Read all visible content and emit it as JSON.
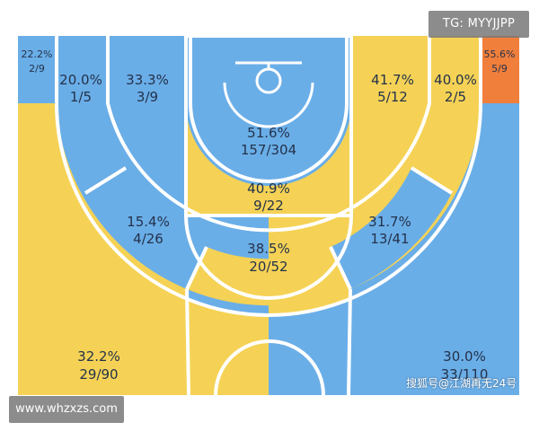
{
  "colors": {
    "blue": "#6aaee8",
    "yellow": "#f5d255",
    "orange": "#f07f3c",
    "line": "#ffffff"
  },
  "zones": {
    "left_corner": {
      "pct": "22.2%",
      "frac": "2/9",
      "color": "blue"
    },
    "right_corner": {
      "pct": "55.6%",
      "frac": "5/9",
      "color": "orange"
    },
    "left_baseline_mid": {
      "pct": "20.0%",
      "frac": "1/5",
      "color": "blue"
    },
    "left_short_mid": {
      "pct": "33.3%",
      "frac": "3/9",
      "color": "blue"
    },
    "right_short_mid": {
      "pct": "41.7%",
      "frac": "5/12",
      "color": "yellow"
    },
    "right_baseline_mid": {
      "pct": "40.0%",
      "frac": "2/5",
      "color": "yellow"
    },
    "restricted_area": {
      "pct": "51.6%",
      "frac": "157/304",
      "color": "blue"
    },
    "paint": {
      "pct": "40.9%",
      "frac": "9/22",
      "color": "yellow"
    },
    "left_elbow": {
      "pct": "15.4%",
      "frac": "4/26",
      "color": "blue"
    },
    "right_elbow": {
      "pct": "31.7%",
      "frac": "13/41",
      "color": "blue"
    },
    "top_key": {
      "pct": "38.5%",
      "frac": "20/52",
      "color": "yellow"
    },
    "left_wing_three": {
      "pct": "32.2%",
      "frac": "29/90",
      "color": "yellow"
    },
    "right_wing_three": {
      "pct": "30.0%",
      "frac": "33/110",
      "color": "blue"
    }
  },
  "watermarks": {
    "telegram": "TG: MYYJJPP",
    "site": "www.whzxzs.com",
    "source": "搜狐号@江湖再无24号"
  }
}
